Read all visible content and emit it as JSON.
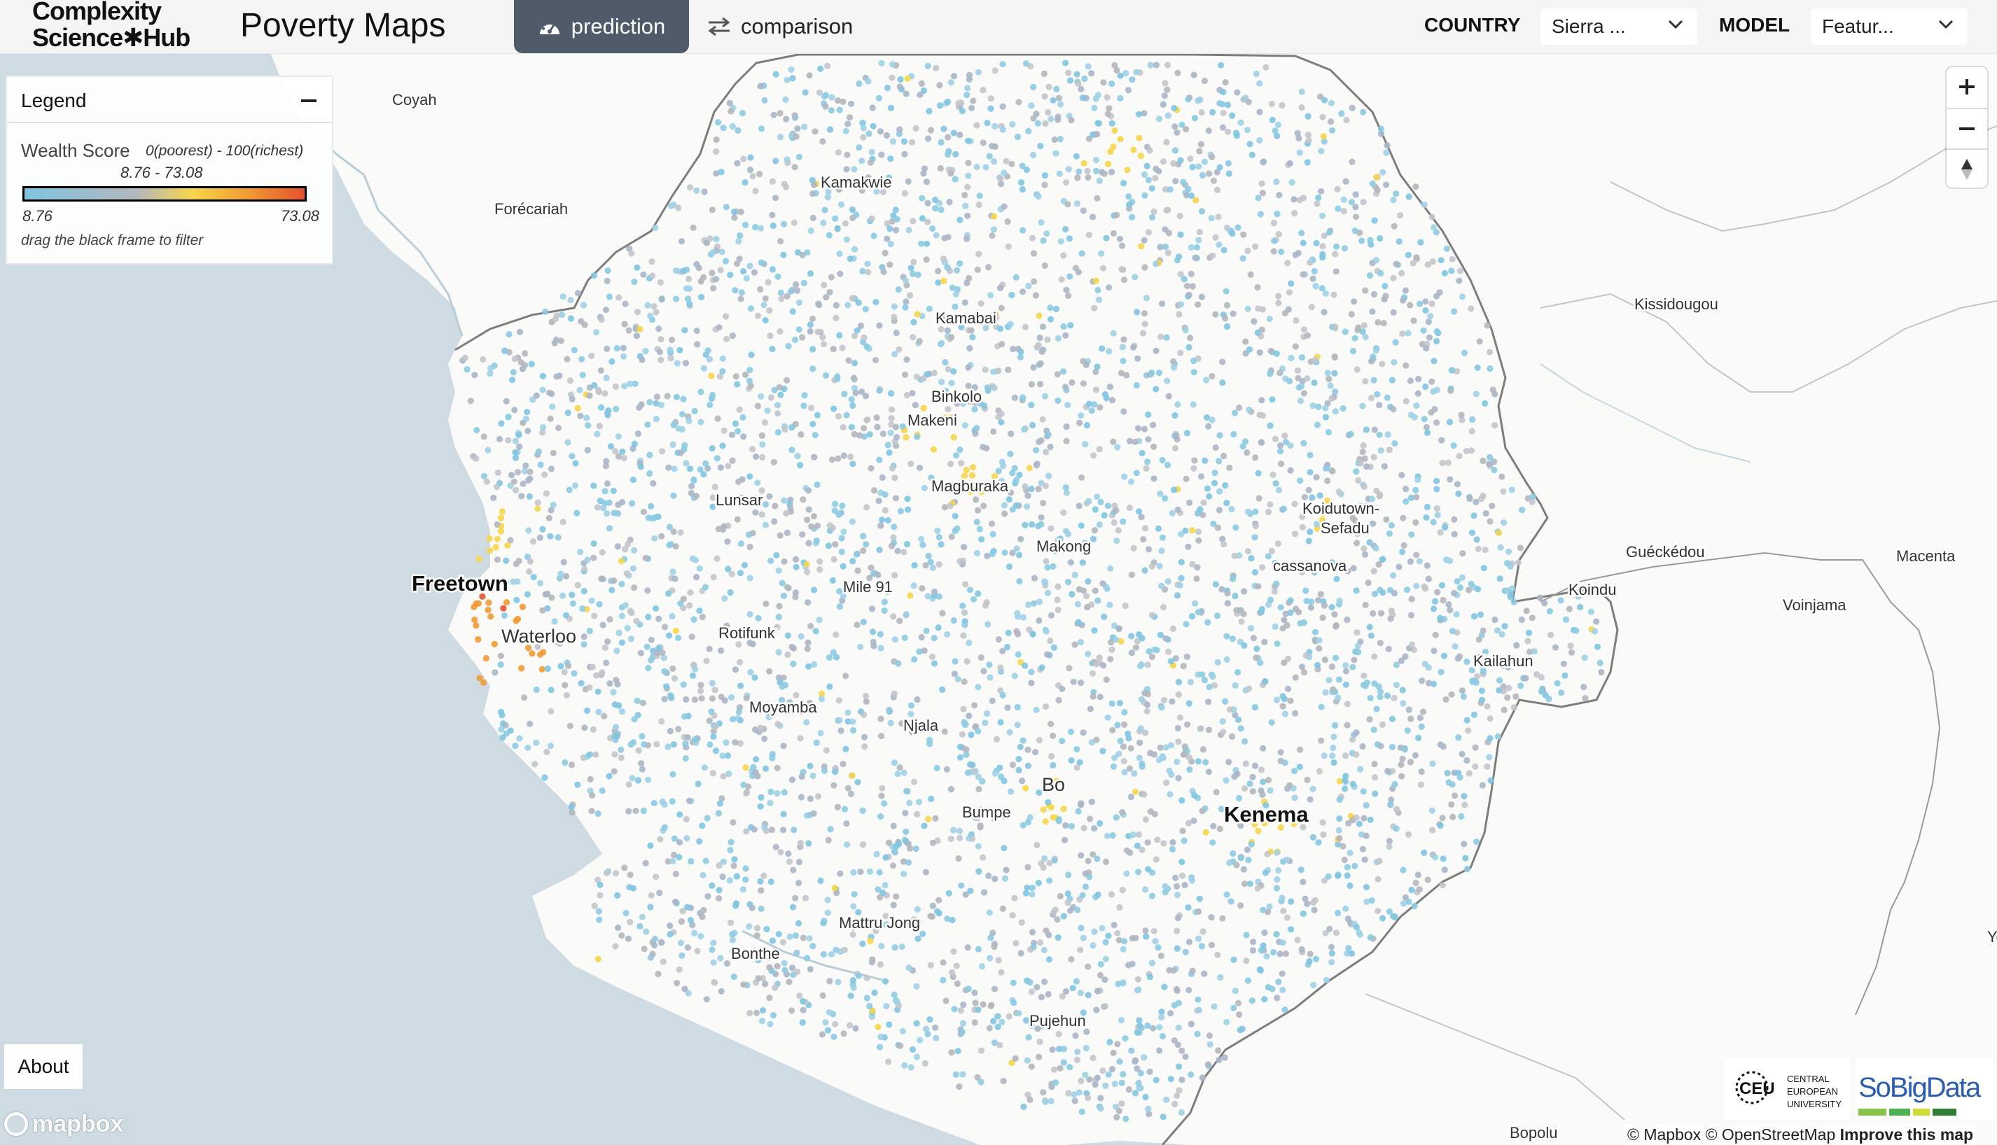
{
  "header": {
    "logo_line1": "Complexity",
    "logo_line2": "Science✱Hub",
    "app_title": "Poverty Maps",
    "tabs": [
      {
        "label": "prediction",
        "active": true
      },
      {
        "label": "comparison",
        "active": false
      }
    ],
    "country_label": "COUNTRY",
    "country_value": "Sierra ...",
    "model_label": "MODEL",
    "model_value": "Featur..."
  },
  "legend": {
    "title": "Legend",
    "metric_label": "Wealth Score",
    "metric_range": "0(poorest) - 100(richest)",
    "current_range": "8.76 - 73.08",
    "min": "8.76",
    "max": "73.08",
    "hint": "drag the black frame to filter",
    "colors": {
      "low": "#7fc5e0",
      "mid": "#b3b7be",
      "high1": "#f6d64a",
      "high2": "#f29a33",
      "top": "#e4512b"
    }
  },
  "map": {
    "places": [
      {
        "name": "Coyah",
        "size": "sm"
      },
      {
        "name": "Forécariah",
        "size": "sm"
      },
      {
        "name": "Kamakwie",
        "size": "sm"
      },
      {
        "name": "Kamabai",
        "size": "sm"
      },
      {
        "name": "Binkolo",
        "size": "sm"
      },
      {
        "name": "Makeni",
        "size": "sm"
      },
      {
        "name": "Magburaka",
        "size": "sm"
      },
      {
        "name": "Lunsar",
        "size": "sm"
      },
      {
        "name": "Makong",
        "size": "sm"
      },
      {
        "name": "Freetown",
        "size": "lg"
      },
      {
        "name": "Mile 91",
        "size": "sm"
      },
      {
        "name": "Waterloo",
        "size": "md"
      },
      {
        "name": "Rotifunk",
        "size": "sm"
      },
      {
        "name": "Moyamba",
        "size": "sm"
      },
      {
        "name": "Njala",
        "size": "sm"
      },
      {
        "name": "Bo",
        "size": "md"
      },
      {
        "name": "Bumpe",
        "size": "sm"
      },
      {
        "name": "Kenema",
        "size": "lg"
      },
      {
        "name": "Mattru Jong",
        "size": "sm"
      },
      {
        "name": "Bonthe",
        "size": "sm"
      },
      {
        "name": "Pujehun",
        "size": "sm"
      },
      {
        "name": "Koidutown-",
        "size": "sm"
      },
      {
        "name": "Sefadu",
        "size": "sm"
      },
      {
        "name": "cassanova",
        "size": "sm"
      },
      {
        "name": "Koindu",
        "size": "sm"
      },
      {
        "name": "Kailahun",
        "size": "sm"
      },
      {
        "name": "Kissidougou",
        "size": "sm"
      },
      {
        "name": "Guéckédou",
        "size": "sm"
      },
      {
        "name": "Macenta",
        "size": "sm"
      },
      {
        "name": "Voinjama",
        "size": "sm"
      },
      {
        "name": "Bopolu",
        "size": "sm"
      },
      {
        "name": "Ye",
        "size": "sm"
      }
    ]
  },
  "controls": {
    "zoom_in": "+",
    "zoom_out": "−",
    "about": "About",
    "mapbox": "mapbox",
    "attribution_1": "© Mapbox",
    "attribution_2": "© OpenStreetMap",
    "attribution_3": "Improve this map"
  },
  "partners": {
    "ceu_mark": "CEU",
    "ceu_line1": "CENTRAL",
    "ceu_line2": "EUROPEAN",
    "ceu_line3": "UNIVERSITY",
    "sobig": "SoBigData"
  }
}
